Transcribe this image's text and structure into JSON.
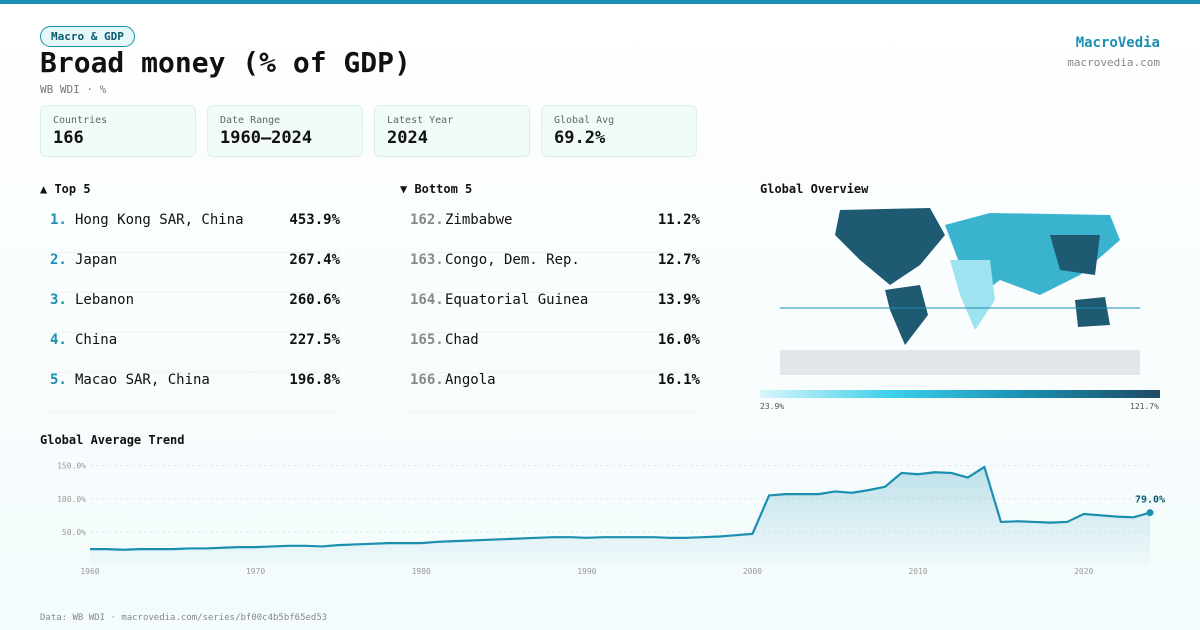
{
  "header": {
    "badge": "Macro & GDP",
    "title": "Broad money (% of GDP)",
    "subtitle": "WB WDI · %",
    "brand": "MacroVedia",
    "site": "macrovedia.com"
  },
  "stats": [
    {
      "label": "Countries",
      "value": "166"
    },
    {
      "label": "Date Range",
      "value": "1960–2024"
    },
    {
      "label": "Latest Year",
      "value": "2024"
    },
    {
      "label": "Global Avg",
      "value": "69.2%"
    }
  ],
  "top": {
    "title": "▲ Top 5",
    "rows": [
      [
        "1.",
        "Hong Kong SAR, China",
        "453.9%"
      ],
      [
        "2.",
        "Japan",
        "267.4%"
      ],
      [
        "3.",
        "Lebanon",
        "260.6%"
      ],
      [
        "4.",
        "China",
        "227.5%"
      ],
      [
        "5.",
        "Macao SAR, China",
        "196.8%"
      ]
    ]
  },
  "bottom": {
    "title": "▼ Bottom 5",
    "rows": [
      [
        "162.",
        "Zimbabwe",
        "11.2%"
      ],
      [
        "163.",
        "Congo, Dem. Rep.",
        "12.7%"
      ],
      [
        "164.",
        "Equatorial Guinea",
        "13.9%"
      ],
      [
        "165.",
        "Chad",
        "16.0%"
      ],
      [
        "166.",
        "Angola",
        "16.1%"
      ]
    ]
  },
  "map": {
    "title": "Global Overview",
    "min": "23.9%",
    "max": "121.7%"
  },
  "chart_data": {
    "type": "line",
    "title": "Global Average Trend",
    "color": "#1a8fb0",
    "x": [
      1960,
      1961,
      1962,
      1963,
      1964,
      1965,
      1966,
      1967,
      1968,
      1969,
      1970,
      1971,
      1972,
      1973,
      1974,
      1975,
      1976,
      1977,
      1978,
      1979,
      1980,
      1981,
      1982,
      1983,
      1984,
      1985,
      1986,
      1987,
      1988,
      1989,
      1990,
      1991,
      1992,
      1993,
      1994,
      1995,
      1996,
      1997,
      1998,
      1999,
      2000,
      2001,
      2002,
      2003,
      2004,
      2005,
      2006,
      2007,
      2008,
      2009,
      2010,
      2011,
      2012,
      2013,
      2014,
      2015,
      2016,
      2017,
      2018,
      2019,
      2020,
      2021,
      2022,
      2023,
      2024
    ],
    "values": [
      24,
      24,
      23,
      24,
      24,
      24,
      25,
      25,
      26,
      27,
      27,
      28,
      29,
      29,
      28,
      30,
      31,
      32,
      33,
      33,
      33,
      35,
      36,
      37,
      38,
      39,
      40,
      41,
      42,
      42,
      41,
      42,
      42,
      42,
      42,
      41,
      41,
      42,
      43,
      45,
      47,
      105,
      107,
      107,
      107,
      111,
      109,
      113,
      118,
      139,
      137,
      140,
      139,
      132,
      148,
      65,
      66,
      65,
      64,
      65,
      77,
      75,
      73,
      72,
      79
    ],
    "end_label": "79.0%",
    "xlim": [
      1960,
      2024
    ],
    "xticks": [
      1960,
      1970,
      1980,
      1990,
      2000,
      2010,
      2020
    ],
    "ylim": [
      0,
      160
    ],
    "yticks": [
      {
        "value": 50,
        "label": "50.0%"
      },
      {
        "value": 100,
        "label": "100.0%"
      },
      {
        "value": 150,
        "label": "150.0%"
      }
    ],
    "grid": true
  },
  "footer": "Data: WB WDI · macrovedia.com/series/bf00c4b5bf65ed53"
}
